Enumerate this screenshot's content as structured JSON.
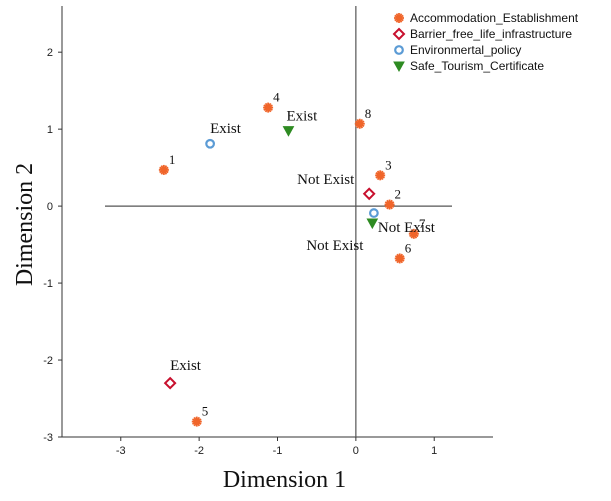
{
  "chart_data": {
    "type": "scatter",
    "xlabel": "Dimension 1",
    "ylabel": "Dimension 2",
    "xlim": [
      -3.75,
      1.75
    ],
    "ylim": [
      -3,
      2.6
    ],
    "xticks": [
      "-3",
      "-2",
      "-1",
      "0",
      "1"
    ],
    "yticks": [
      "-3",
      "-2",
      "-1",
      "0",
      "1",
      "2"
    ],
    "reference_lines": {
      "x": 0,
      "y": 0
    },
    "legend": "top-right",
    "series": [
      {
        "name": "Accommodation_Establishment",
        "color": "#f0652a",
        "marker": "asterisk",
        "points": [
          {
            "label": "1",
            "x": -2.45,
            "y": 0.47
          },
          {
            "label": "2",
            "x": 0.43,
            "y": 0.02
          },
          {
            "label": "3",
            "x": 0.31,
            "y": 0.4
          },
          {
            "label": "4",
            "x": -1.12,
            "y": 1.28
          },
          {
            "label": "5",
            "x": -2.03,
            "y": -2.8
          },
          {
            "label": "6",
            "x": 0.56,
            "y": -0.68
          },
          {
            "label": "7",
            "x": 0.74,
            "y": -0.36
          },
          {
            "label": "8",
            "x": 0.05,
            "y": 1.07
          }
        ]
      },
      {
        "name": "Barrier_free_life_infrastructure",
        "color": "#c8102e",
        "marker": "diamond",
        "points": [
          {
            "label": "Not Exist",
            "x": 0.17,
            "y": 0.16
          },
          {
            "label": "Exist",
            "x": -2.37,
            "y": -2.3
          }
        ]
      },
      {
        "name": "Environmertal_policy",
        "color": "#5b9bd5",
        "marker": "circle",
        "points": [
          {
            "label": "Exist",
            "x": -1.86,
            "y": 0.81
          },
          {
            "label": "Not Exist",
            "x": 0.23,
            "y": -0.09
          }
        ]
      },
      {
        "name": "Safe_Tourism_Certificate",
        "color": "#2e8b22",
        "marker": "triangle-down",
        "points": [
          {
            "label": "Exist",
            "x": -0.86,
            "y": 0.98
          },
          {
            "label": "Not Exist",
            "x": 0.21,
            "y": -0.22
          }
        ]
      }
    ]
  }
}
